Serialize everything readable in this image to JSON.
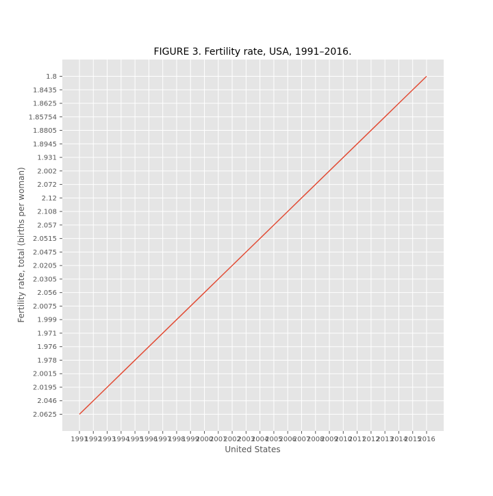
{
  "chart_data": {
    "type": "line",
    "title": "FIGURE 3. Fertility rate, USA, 1991–2016.",
    "xlabel": "United States",
    "ylabel": "Fertility rate, total (births per woman)",
    "x": [
      "1991",
      "1992",
      "1993",
      "1994",
      "1995",
      "1996",
      "1997",
      "1998",
      "1999",
      "2000",
      "2001",
      "2002",
      "2003",
      "2004",
      "2005",
      "2006",
      "2007",
      "2008",
      "2009",
      "2010",
      "2011",
      "2012",
      "2013",
      "2014",
      "2015",
      "2016"
    ],
    "y_categories": [
      "2.0625",
      "2.046",
      "2.0195",
      "2.0015",
      "1.978",
      "1.976",
      "1.971",
      "1.999",
      "2.0075",
      "2.056",
      "2.0305",
      "2.0205",
      "2.0475",
      "2.0515",
      "2.057",
      "2.108",
      "2.12",
      "2.072",
      "2.002",
      "1.931",
      "1.8945",
      "1.8805",
      "1.85754",
      "1.8625",
      "1.8435",
      "1.8"
    ],
    "series": [
      {
        "values": [
          "2.0625",
          "2.046",
          "2.0195",
          "2.0015",
          "1.978",
          "1.976",
          "1.971",
          "1.999",
          "2.0075",
          "2.056",
          "2.0305",
          "2.0205",
          "2.0475",
          "2.0515",
          "2.057",
          "2.108",
          "2.12",
          "2.072",
          "2.002",
          "1.931",
          "1.8945",
          "1.8805",
          "1.85754",
          "1.8625",
          "1.8435",
          "1.8"
        ],
        "color": "#e24a33"
      }
    ],
    "grid": true,
    "background_color": "#e5e5e5",
    "grid_color": "#ffffff"
  }
}
